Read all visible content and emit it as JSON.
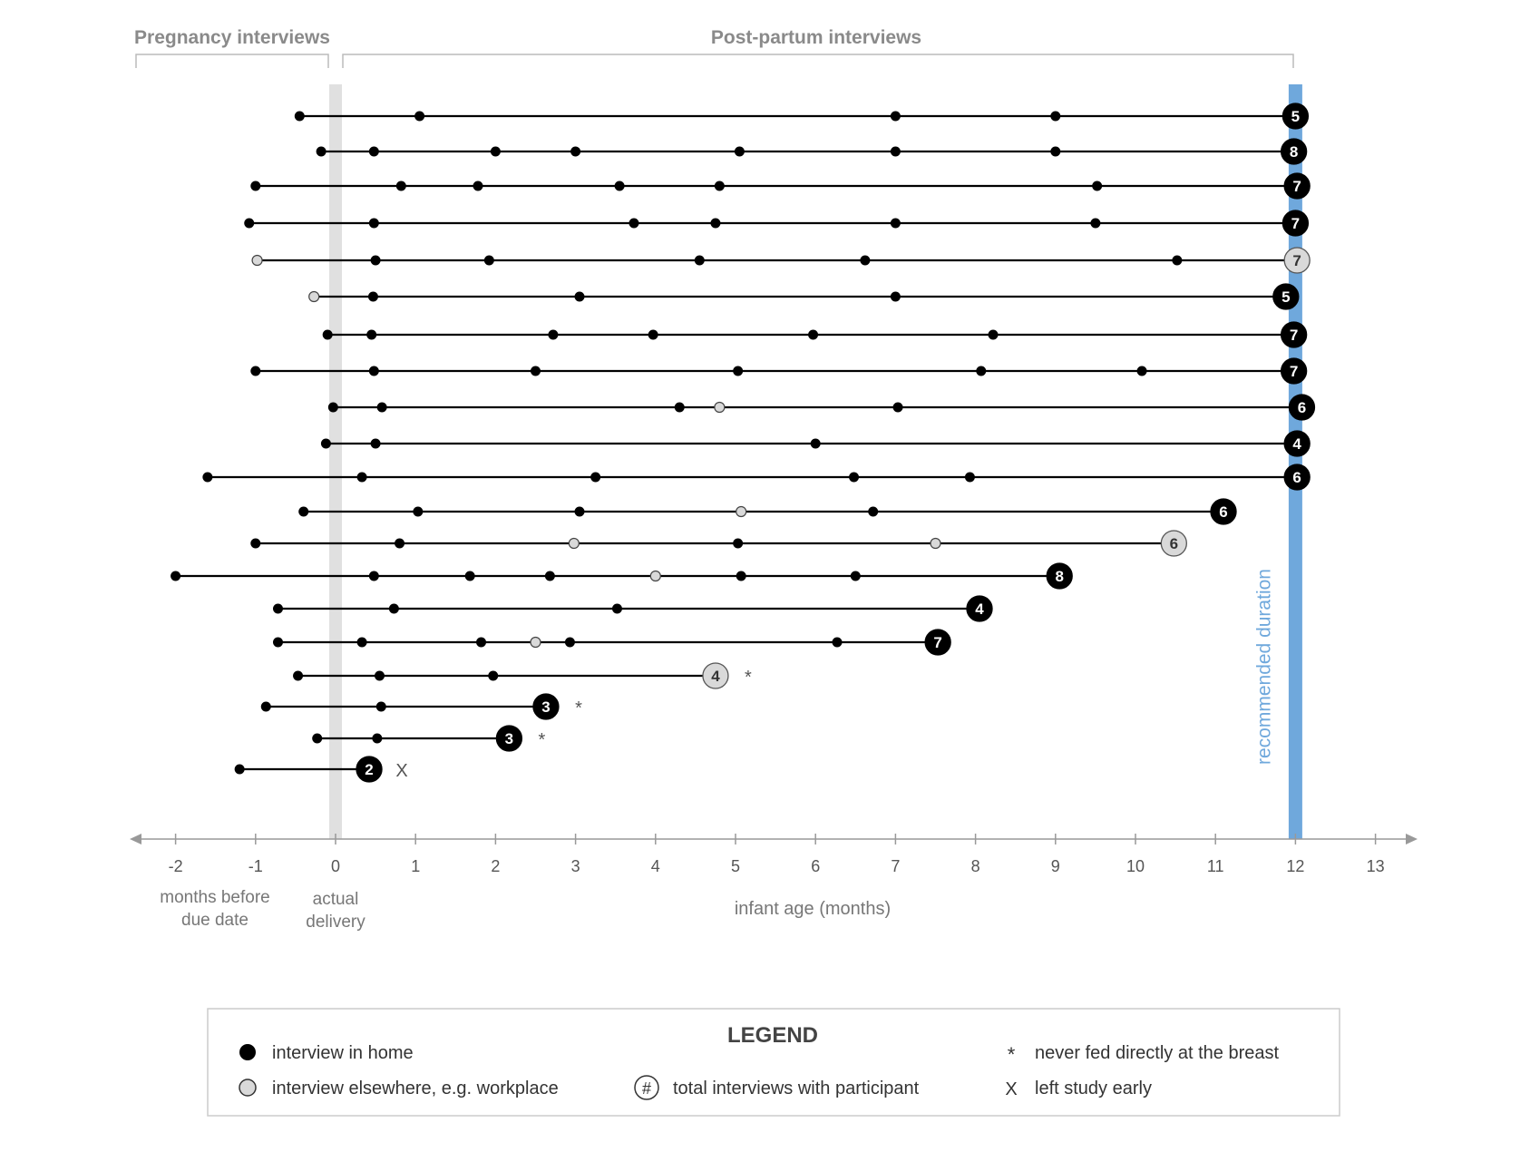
{
  "header": {
    "pregnancy_label": "Pregnancy interviews",
    "postpartum_label": "Post-partum interviews"
  },
  "chart_data": {
    "type": "timeline",
    "xlabel": "infant age (months)",
    "xlim": [
      -2.5,
      13.5
    ],
    "ticks": [
      -2,
      -1,
      0,
      1,
      2,
      3,
      4,
      5,
      6,
      7,
      8,
      9,
      10,
      11,
      12,
      13
    ],
    "tick_labels": [
      "-2",
      "-1",
      "0",
      "1",
      "2",
      "3",
      "4",
      "5",
      "6",
      "7",
      "8",
      "9",
      "10",
      "11",
      "12",
      "13"
    ],
    "left_axis_note": [
      "months before",
      "due date"
    ],
    "delivery_note": [
      "actual",
      "delivery"
    ],
    "delivery_x": 0,
    "recommended_x": 12,
    "recommended_label": "recommended duration",
    "colors": {
      "home": "#000000",
      "elsewhere": "#d9d9d9",
      "recommended": "#6fa8dc",
      "delivery": "#e0e0e0",
      "axis": "#999999"
    },
    "participants": [
      {
        "points": [
          {
            "x": -0.45,
            "type": "home"
          },
          {
            "x": 1.05,
            "type": "home"
          },
          {
            "x": 7.0,
            "type": "home"
          },
          {
            "x": 9.0,
            "type": "home"
          }
        ],
        "end": 12.0,
        "total": "5",
        "total_type": "home",
        "note": ""
      },
      {
        "points": [
          {
            "x": -0.18,
            "type": "home"
          },
          {
            "x": 0.48,
            "type": "home"
          },
          {
            "x": 2.0,
            "type": "home"
          },
          {
            "x": 3.0,
            "type": "home"
          },
          {
            "x": 5.05,
            "type": "home"
          },
          {
            "x": 7.0,
            "type": "home"
          },
          {
            "x": 9.0,
            "type": "home"
          }
        ],
        "end": 11.98,
        "total": "8",
        "total_type": "home",
        "note": ""
      },
      {
        "points": [
          {
            "x": -1.0,
            "type": "home"
          },
          {
            "x": 0.82,
            "type": "home"
          },
          {
            "x": 1.78,
            "type": "home"
          },
          {
            "x": 3.55,
            "type": "home"
          },
          {
            "x": 4.8,
            "type": "home"
          },
          {
            "x": 9.52,
            "type": "home"
          }
        ],
        "end": 12.02,
        "total": "7",
        "total_type": "home",
        "note": ""
      },
      {
        "points": [
          {
            "x": -1.08,
            "type": "home"
          },
          {
            "x": 0.48,
            "type": "home"
          },
          {
            "x": 3.73,
            "type": "home"
          },
          {
            "x": 4.75,
            "type": "home"
          },
          {
            "x": 7.0,
            "type": "home"
          },
          {
            "x": 9.5,
            "type": "home"
          }
        ],
        "end": 12.0,
        "total": "7",
        "total_type": "home",
        "note": ""
      },
      {
        "points": [
          {
            "x": -0.98,
            "type": "elsewhere"
          },
          {
            "x": 0.5,
            "type": "home"
          },
          {
            "x": 1.92,
            "type": "home"
          },
          {
            "x": 4.55,
            "type": "home"
          },
          {
            "x": 6.62,
            "type": "home"
          },
          {
            "x": 10.52,
            "type": "home"
          }
        ],
        "end": 12.02,
        "total": "7",
        "total_type": "elsewhere",
        "note": ""
      },
      {
        "points": [
          {
            "x": -0.27,
            "type": "elsewhere"
          },
          {
            "x": 0.47,
            "type": "home"
          },
          {
            "x": 3.05,
            "type": "home"
          },
          {
            "x": 7.0,
            "type": "home"
          }
        ],
        "end": 11.88,
        "total": "5",
        "total_type": "home",
        "note": ""
      },
      {
        "points": [
          {
            "x": -0.1,
            "type": "home"
          },
          {
            "x": 0.45,
            "type": "home"
          },
          {
            "x": 2.72,
            "type": "home"
          },
          {
            "x": 3.97,
            "type": "home"
          },
          {
            "x": 5.97,
            "type": "home"
          },
          {
            "x": 8.22,
            "type": "home"
          }
        ],
        "end": 11.98,
        "total": "7",
        "total_type": "home",
        "note": ""
      },
      {
        "points": [
          {
            "x": -1.0,
            "type": "home"
          },
          {
            "x": 0.48,
            "type": "home"
          },
          {
            "x": 2.5,
            "type": "home"
          },
          {
            "x": 5.03,
            "type": "home"
          },
          {
            "x": 8.07,
            "type": "home"
          },
          {
            "x": 10.08,
            "type": "home"
          }
        ],
        "end": 11.98,
        "total": "7",
        "total_type": "home",
        "note": ""
      },
      {
        "points": [
          {
            "x": -0.03,
            "type": "home"
          },
          {
            "x": 0.58,
            "type": "home"
          },
          {
            "x": 4.3,
            "type": "home"
          },
          {
            "x": 4.8,
            "type": "elsewhere"
          },
          {
            "x": 7.03,
            "type": "home"
          }
        ],
        "end": 12.08,
        "total": "6",
        "total_type": "home",
        "note": ""
      },
      {
        "points": [
          {
            "x": -0.12,
            "type": "home"
          },
          {
            "x": 0.5,
            "type": "home"
          },
          {
            "x": 6.0,
            "type": "home"
          }
        ],
        "end": 12.02,
        "total": "4",
        "total_type": "home",
        "note": ""
      },
      {
        "points": [
          {
            "x": -1.6,
            "type": "home"
          },
          {
            "x": 0.33,
            "type": "home"
          },
          {
            "x": 3.25,
            "type": "home"
          },
          {
            "x": 6.48,
            "type": "home"
          },
          {
            "x": 7.93,
            "type": "home"
          }
        ],
        "end": 12.02,
        "total": "6",
        "total_type": "home",
        "note": ""
      },
      {
        "points": [
          {
            "x": -0.4,
            "type": "home"
          },
          {
            "x": 1.03,
            "type": "home"
          },
          {
            "x": 3.05,
            "type": "home"
          },
          {
            "x": 5.07,
            "type": "elsewhere"
          },
          {
            "x": 6.72,
            "type": "home"
          }
        ],
        "end": 11.1,
        "total": "6",
        "total_type": "home",
        "note": ""
      },
      {
        "points": [
          {
            "x": -1.0,
            "type": "home"
          },
          {
            "x": 0.8,
            "type": "home"
          },
          {
            "x": 2.98,
            "type": "elsewhere"
          },
          {
            "x": 5.03,
            "type": "home"
          },
          {
            "x": 7.5,
            "type": "elsewhere"
          }
        ],
        "end": 10.48,
        "total": "6",
        "total_type": "elsewhere",
        "note": ""
      },
      {
        "points": [
          {
            "x": -2.0,
            "type": "home"
          },
          {
            "x": 0.48,
            "type": "home"
          },
          {
            "x": 1.68,
            "type": "home"
          },
          {
            "x": 2.68,
            "type": "home"
          },
          {
            "x": 4.0,
            "type": "elsewhere"
          },
          {
            "x": 5.07,
            "type": "home"
          },
          {
            "x": 6.5,
            "type": "home"
          }
        ],
        "end": 9.05,
        "total": "8",
        "total_type": "home",
        "note": ""
      },
      {
        "points": [
          {
            "x": -0.72,
            "type": "home"
          },
          {
            "x": 0.73,
            "type": "home"
          },
          {
            "x": 3.52,
            "type": "home"
          }
        ],
        "end": 8.05,
        "total": "4",
        "total_type": "home",
        "note": ""
      },
      {
        "points": [
          {
            "x": -0.72,
            "type": "home"
          },
          {
            "x": 0.33,
            "type": "home"
          },
          {
            "x": 1.82,
            "type": "home"
          },
          {
            "x": 2.5,
            "type": "elsewhere"
          },
          {
            "x": 2.93,
            "type": "home"
          },
          {
            "x": 6.27,
            "type": "home"
          }
        ],
        "end": 7.53,
        "total": "7",
        "total_type": "home",
        "note": ""
      },
      {
        "points": [
          {
            "x": -0.47,
            "type": "home"
          },
          {
            "x": 0.55,
            "type": "home"
          },
          {
            "x": 1.97,
            "type": "home"
          }
        ],
        "end": 4.75,
        "total": "4",
        "total_type": "elsewhere",
        "note": "*"
      },
      {
        "points": [
          {
            "x": -0.87,
            "type": "home"
          },
          {
            "x": 0.57,
            "type": "home"
          }
        ],
        "end": 2.63,
        "total": "3",
        "total_type": "home",
        "note": "*"
      },
      {
        "points": [
          {
            "x": -0.23,
            "type": "home"
          },
          {
            "x": 0.52,
            "type": "home"
          }
        ],
        "end": 2.17,
        "total": "3",
        "total_type": "home",
        "note": "*"
      },
      {
        "points": [
          {
            "x": -1.2,
            "type": "home"
          }
        ],
        "end": 0.42,
        "total": "2",
        "total_type": "home",
        "note": "X"
      }
    ]
  },
  "legend": {
    "title": "LEGEND",
    "home": "interview in home",
    "elsewhere": "interview elsewhere, e.g. workplace",
    "total_symbol": "#",
    "total": "total interviews with participant",
    "never_symbol": "*",
    "never": "never fed directly at the breast",
    "left_symbol": "X",
    "left": "left study early"
  }
}
